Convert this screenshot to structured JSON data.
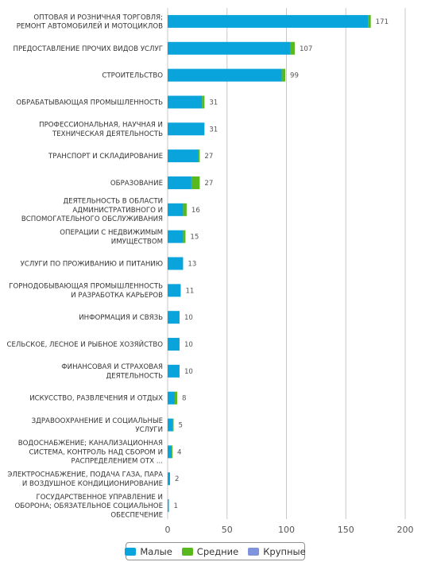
{
  "chart_data": {
    "type": "bar",
    "orientation": "horizontal",
    "stacked": true,
    "categories": [
      "ОПТОВАЯ И РОЗНИЧНАЯ ТОРГОВЛЯ; РЕМОНТ АВТОМОБИЛЕЙ И МОТОЦИКЛОВ",
      "ПРЕДОСТАВЛЕНИЕ ПРОЧИХ ВИДОВ УСЛУГ",
      "СТРОИТЕЛЬСТВО",
      "ОБРАБАТЫВАЮЩАЯ ПРОМЫШЛЕННОСТЬ",
      "ПРОФЕССИОНАЛЬНАЯ, НАУЧНАЯ И ТЕХНИЧЕСКАЯ ДЕЯТЕЛЬНОСТЬ",
      "ТРАНСПОРТ И СКЛАДИРОВАНИЕ",
      "ОБРАЗОВАНИЕ",
      "ДЕЯТЕЛЬНОСТЬ В ОБЛАСТИ АДМИНИСТРАТИВНОГО И ВСПОМОГАТЕЛЬНОГО ОБСЛУЖИВАНИЯ",
      "ОПЕРАЦИИ С НЕДВИЖИМЫМ ИМУЩЕСТВОМ",
      "УСЛУГИ ПО ПРОЖИВАНИЮ И ПИТАНИЮ",
      "ГОРНОДОБЫВАЮЩАЯ ПРОМЫШЛЕННОСТЬ И РАЗРАБОТКА КАРЬЕРОВ",
      "ИНФОРМАЦИЯ И СВЯЗЬ",
      "СЕЛЬСКОЕ, ЛЕСНОЕ И РЫБНОЕ ХОЗЯЙСТВО",
      "ФИНАНСОВАЯ И СТРАХОВАЯ ДЕЯТЕЛЬНОСТЬ",
      "ИСКУССТВО, РАЗВЛЕЧЕНИЯ И ОТДЫХ",
      "ЗДРАВООХРАНЕНИЕ И СОЦИАЛЬНЫЕ УСЛУГИ",
      "ВОДОСНАБЖЕНИЕ; КАНАЛИЗАЦИОННАЯ СИСТЕМА, КОНТРОЛЬ НАД СБОРОМ И РАСПРЕДЕЛЕНИЕМ ОТХ ...",
      "ЭЛЕКТРОСНАБЖЕНИЕ, ПОДАЧА ГАЗА, ПАРА И ВОЗДУШНОЕ КОНДИЦИОНИРОВАНИЕ",
      "ГОСУДАРСТВЕННОЕ УПРАВЛЕНИЕ И ОБОРОНА; ОБЯЗАТЕЛЬНОЕ СОЦИАЛЬНОЕ ОБЕСПЕЧЕНИЕ"
    ],
    "category_lines": [
      [
        "ОПТОВАЯ И РОЗНИЧНАЯ ТОРГОВЛЯ;",
        "РЕМОНТ АВТОМОБИЛЕЙ И МОТОЦИКЛОВ"
      ],
      [
        "ПРЕДОСТАВЛЕНИЕ ПРОЧИХ ВИДОВ УСЛУГ"
      ],
      [
        "СТРОИТЕЛЬСТВО"
      ],
      [
        "ОБРАБАТЫВАЮЩАЯ ПРОМЫШЛЕННОСТЬ"
      ],
      [
        "ПРОФЕССИОНАЛЬНАЯ, НАУЧНАЯ И",
        "ТЕХНИЧЕСКАЯ ДЕЯТЕЛЬНОСТЬ"
      ],
      [
        "ТРАНСПОРТ И СКЛАДИРОВАНИЕ"
      ],
      [
        "ОБРАЗОВАНИЕ"
      ],
      [
        "ДЕЯТЕЛЬНОСТЬ В ОБЛАСТИ",
        "АДМИНИСТРАТИВНОГО И",
        "ВСПОМОГАТЕЛЬНОГО ОБСЛУЖИВАНИЯ"
      ],
      [
        "ОПЕРАЦИИ С НЕДВИЖИМЫМ",
        "ИМУЩЕСТВОМ"
      ],
      [
        "УСЛУГИ ПО ПРОЖИВАНИЮ И ПИТАНИЮ"
      ],
      [
        "ГОРНОДОБЫВАЮЩАЯ ПРОМЫШЛЕННОСТЬ",
        "И РАЗРАБОТКА КАРЬЕРОВ"
      ],
      [
        "ИНФОРМАЦИЯ И СВЯЗЬ"
      ],
      [
        "СЕЛЬСКОЕ, ЛЕСНОЕ И РЫБНОЕ ХОЗЯЙСТВО"
      ],
      [
        "ФИНАНСОВАЯ И СТРАХОВАЯ",
        "ДЕЯТЕЛЬНОСТЬ"
      ],
      [
        "ИСКУССТВО, РАЗВЛЕЧЕНИЯ И ОТДЫХ"
      ],
      [
        "ЗДРАВООХРАНЕНИЕ И СОЦИАЛЬНЫЕ",
        "УСЛУГИ"
      ],
      [
        "ВОДОСНАБЖЕНИЕ; КАНАЛИЗАЦИОННАЯ",
        "СИСТЕМА, КОНТРОЛЬ НАД СБОРОМ И",
        "РАСПРЕДЕЛЕНИЕМ ОТХ ..."
      ],
      [
        "ЭЛЕКТРОСНАБЖЕНИЕ, ПОДАЧА ГАЗА, ПАРА",
        "И ВОЗДУШНОЕ КОНДИЦИОНИРОВАНИЕ"
      ],
      [
        "ГОСУДАРСТВЕННОЕ УПРАВЛЕНИЕ И",
        "ОБОРОНА; ОБЯЗАТЕЛЬНОЕ СОЦИАЛЬНОЕ",
        "ОБЕСПЕЧЕНИЕ"
      ]
    ],
    "series": [
      {
        "name": "Малые",
        "color": "#0aa4dd",
        "values": [
          169,
          103,
          96,
          29,
          31,
          26,
          20,
          13,
          13,
          13,
          11,
          10,
          10,
          10,
          6,
          4,
          3,
          2,
          1
        ]
      },
      {
        "name": "Средние",
        "color": "#59b81e",
        "values": [
          2,
          4,
          3,
          2,
          0,
          1,
          7,
          3,
          2,
          0,
          0,
          0,
          0,
          0,
          2,
          1,
          1,
          0,
          0
        ]
      },
      {
        "name": "Крупные",
        "color": "#8094dd",
        "values": [
          0,
          0,
          0,
          0,
          0,
          0,
          0,
          0,
          0,
          0,
          0,
          0,
          0,
          0,
          0,
          0,
          0,
          0,
          0
        ]
      }
    ],
    "totals": [
      171,
      107,
      99,
      31,
      31,
      27,
      27,
      16,
      15,
      13,
      11,
      10,
      10,
      10,
      8,
      5,
      4,
      2,
      1
    ],
    "xticks": [
      0,
      50,
      100,
      150,
      200
    ],
    "xlim": [
      0,
      200
    ],
    "grid": true,
    "legend_position": "bottom"
  }
}
